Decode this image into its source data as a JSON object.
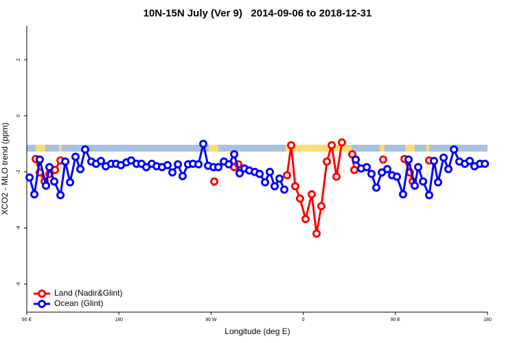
{
  "chart_data": {
    "type": "line",
    "title": "10N-15N July (Ver 9)   2014-09-06 to 2018-12-31",
    "x_label": "Longitude (deg E)",
    "y_label": "XCO2 - MLO trend (ppm)",
    "xlim": [
      90,
      540
    ],
    "ylim": [
      -7,
      3.2
    ],
    "xticks": [
      {
        "value": 90,
        "label": "90 E"
      },
      {
        "value": 180,
        "label": "180"
      },
      {
        "value": 270,
        "label": "90 W"
      },
      {
        "value": 360,
        "label": "0"
      },
      {
        "value": 450,
        "label": "90 E"
      },
      {
        "value": 540,
        "label": "180"
      }
    ],
    "yticks": [
      2,
      0,
      -2,
      -4,
      -6
    ],
    "legend": "bottom-left",
    "series": [
      {
        "name": "Land (Nadir&Glint)",
        "color": "#ff0000",
        "x": [
          98.7,
          102.7,
          107.4,
          112.1,
          117.5,
          122.9,
          null,
          273.1,
          null,
          287.9,
          292.6,
          296.6,
          null,
          344.2,
          348.2,
          352.2,
          356.9,
          362.3,
          368.3,
          373,
          377.7,
          383.1,
          387.8,
          392.5,
          397.8,
          null,
          407.9,
          409.9,
          null,
          438.1,
          null,
          458.9,
          464.2,
          466.9,
          null,
          483
        ],
        "values": [
          -1.54,
          -2.02,
          -2.34,
          -2.07,
          -1.93,
          -1.59,
          null,
          -2.34,
          null,
          -1.73,
          -1.83,
          -1.73,
          null,
          -2.12,
          -1.05,
          -2.51,
          -2.95,
          -3.68,
          -2.8,
          -4.2,
          -3.22,
          -1.63,
          -1.05,
          -2.17,
          -0.95,
          null,
          -1.37,
          -1.93,
          null,
          -1.56,
          null,
          -1.54,
          -2.02,
          -2.34,
          null,
          -1.59
        ]
      },
      {
        "name": "Ocean (Glint)",
        "color": "#0000ff",
        "x": [
          92.7,
          97.4,
          102.7,
          108.8,
          112.1,
          116.8,
          122.9,
          127.6,
          132.3,
          137.6,
          142.3,
          147,
          153,
          157.7,
          162.4,
          167.1,
          172.5,
          177.2,
          181.9,
          187.3,
          191.9,
          197.3,
          202,
          206.7,
          212.1,
          216.8,
          222.1,
          227.5,
          232.2,
          237.6,
          242.2,
          247.6,
          252.3,
          257.7,
          262.4,
          267.1,
          272.4,
          277.1,
          282.5,
          287.2,
          292.6,
          297.9,
          302.6,
          307.3,
          312.7,
          317.4,
          322.7,
          327.4,
          332.1,
          336.8,
          341.5,
          null,
          411.3,
          416.6,
          422,
          426.7,
          431.4,
          436.8,
          442.1,
          446.8,
          451.5,
          457.5,
          462.9,
          468.9,
          472.3,
          477,
          483,
          487.7,
          491.7,
          497.1,
          501.8,
          507.2,
          512.5,
          517.9,
          522.6,
          527.3,
          532.7,
          537.4
        ],
        "values": [
          -2.2,
          -2.8,
          -1.56,
          -2.49,
          -1.83,
          -2.34,
          -2.83,
          -1.63,
          -2.37,
          -1.46,
          -1.9,
          -1.2,
          -1.63,
          -1.71,
          -1.61,
          -1.8,
          -1.71,
          -1.71,
          -1.76,
          -1.66,
          -1.59,
          -1.71,
          -1.71,
          -1.83,
          -1.71,
          -1.8,
          -1.83,
          -1.76,
          -2.02,
          -1.73,
          -2.15,
          -1.73,
          -1.71,
          -1.73,
          -1.0,
          -1.78,
          -1.83,
          -1.83,
          -1.63,
          -1.73,
          -1.37,
          -2.05,
          -1.88,
          -1.95,
          -2.0,
          -2.07,
          -2.37,
          -2.0,
          -2.51,
          -2.24,
          -2.63,
          null,
          -1.56,
          -1.88,
          -1.83,
          -2.07,
          -2.56,
          -2.02,
          -1.9,
          -2.12,
          -2.17,
          -2.8,
          -1.56,
          -2.49,
          -1.83,
          -2.34,
          -2.83,
          -1.61,
          -2.37,
          -1.49,
          -1.9,
          -1.2,
          -1.63,
          -1.71,
          -1.61,
          -1.8,
          -1.71,
          -1.71
        ]
      }
    ]
  }
}
